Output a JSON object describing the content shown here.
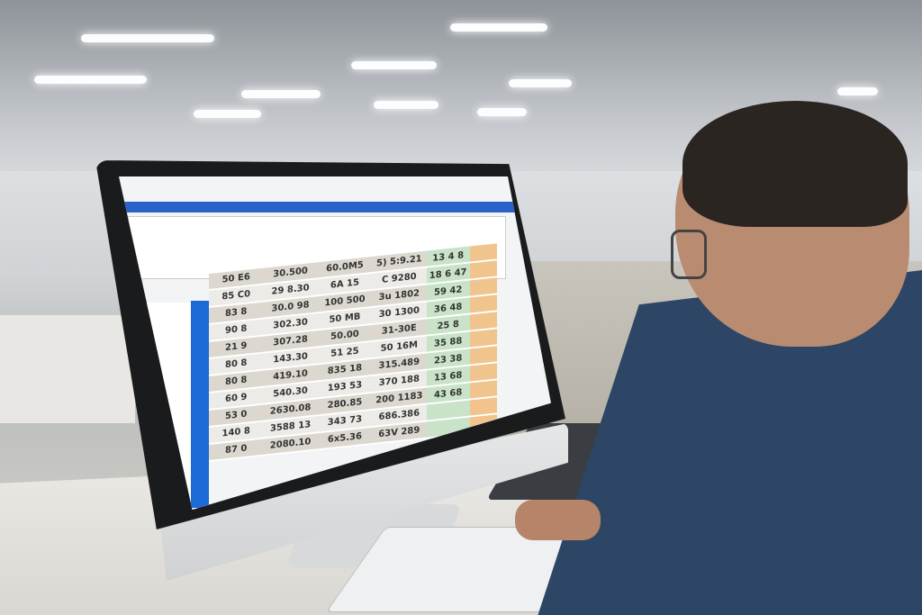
{
  "scene": "office-factory",
  "spreadsheet": {
    "rows": [
      [
        "50 E6",
        "30.500",
        "60.0M5",
        "5) 5:9.21",
        "13 4 8"
      ],
      [
        "85 C0",
        "29 8.30",
        "6A 15",
        "C 9280",
        "18 6 47"
      ],
      [
        "83 8",
        "30.0 98",
        "100 500",
        "3u 1802",
        "59 42"
      ],
      [
        "90 8",
        "302.30",
        "50 MB",
        "30 1300",
        "36 48"
      ],
      [
        "21 9",
        "307.28",
        "50.00",
        "31-30E",
        "25 8"
      ],
      [
        "80 8",
        "143.30",
        "51 25",
        "50 16M",
        "35 88"
      ],
      [
        "80 8",
        "419.10",
        "835 18",
        "315.489",
        "23 38"
      ],
      [
        "60 9",
        "540.30",
        "193 53",
        "370 188",
        "13 68"
      ],
      [
        "53 0",
        "2630.08",
        "280.85",
        "200 1183",
        "43 68"
      ],
      [
        "140 8",
        "3588 13",
        "343 73",
        "686.386",
        ""
      ],
      [
        "87 0",
        "2080.10",
        "6x5.36",
        "63V 289",
        ""
      ]
    ]
  }
}
